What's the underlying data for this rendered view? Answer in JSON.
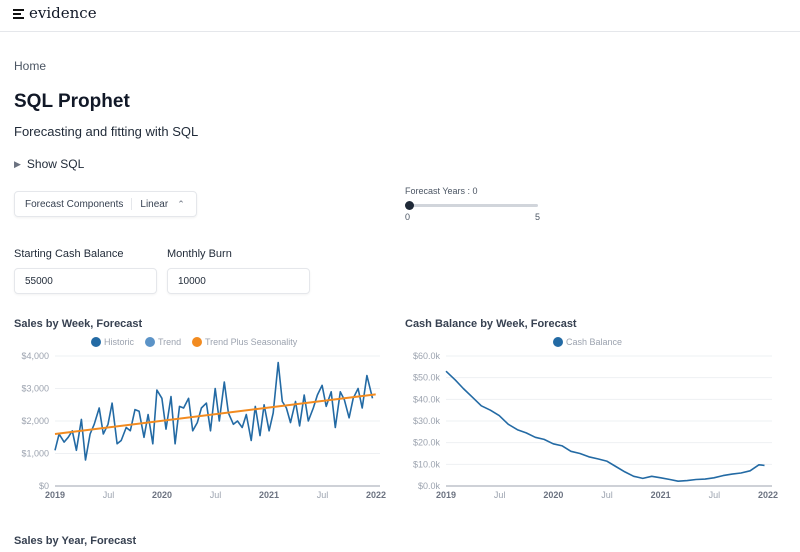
{
  "header": {
    "logo_text": "evidence"
  },
  "breadcrumb": "Home",
  "title": "SQL Prophet",
  "subtitle": "Forecasting and fitting with SQL",
  "show_sql": "Show SQL",
  "dropdown": {
    "label": "Forecast Components",
    "value": "Linear"
  },
  "slider": {
    "label": "Forecast Years : 0",
    "value": 0,
    "min": "0",
    "max": "5"
  },
  "inputs": [
    {
      "label": "Starting Cash Balance",
      "value": "55000"
    },
    {
      "label": "Monthly Burn",
      "value": "10000"
    }
  ],
  "next_section_title": "Sales by Year, Forecast",
  "colors": {
    "historic": "#236aa4",
    "trend": "#5b93c7",
    "seasonality": "#f28b20",
    "cash": "#236aa4"
  },
  "chart_data": [
    {
      "type": "line",
      "title": "Sales by Week, Forecast",
      "ylim": [
        0,
        4000
      ],
      "yticks": [
        "$0",
        "$1,000",
        "$2,000",
        "$3,000",
        "$4,000"
      ],
      "xticks": [
        "2019",
        "Jul",
        "2020",
        "Jul",
        "2021",
        "Jul",
        "2022"
      ],
      "grid": true,
      "legend": "top",
      "series": [
        {
          "name": "Historic",
          "x": [
            "2019-01-01",
            "2019-01-15",
            "2019-02-01",
            "2019-02-15",
            "2019-03-01",
            "2019-03-15",
            "2019-04-01",
            "2019-04-15",
            "2019-05-01",
            "2019-05-15",
            "2019-06-01",
            "2019-06-15",
            "2019-07-01",
            "2019-07-15",
            "2019-08-01",
            "2019-08-15",
            "2019-09-01",
            "2019-09-15",
            "2019-10-01",
            "2019-10-15",
            "2019-11-01",
            "2019-11-15",
            "2019-12-01",
            "2019-12-15",
            "2020-01-01",
            "2020-01-15",
            "2020-02-01",
            "2020-02-15",
            "2020-03-01",
            "2020-03-15",
            "2020-04-01",
            "2020-04-15",
            "2020-05-01",
            "2020-05-15",
            "2020-06-01",
            "2020-06-15",
            "2020-07-01",
            "2020-07-15",
            "2020-08-01",
            "2020-08-15",
            "2020-09-01",
            "2020-09-15",
            "2020-10-01",
            "2020-10-15",
            "2020-11-01",
            "2020-11-15",
            "2020-12-01",
            "2020-12-15",
            "2021-01-01",
            "2021-01-15",
            "2021-02-01",
            "2021-02-15",
            "2021-03-01",
            "2021-03-15",
            "2021-04-01",
            "2021-04-15",
            "2021-05-01",
            "2021-05-15",
            "2021-06-01",
            "2021-06-15",
            "2021-07-01",
            "2021-07-15",
            "2021-08-01",
            "2021-08-15",
            "2021-09-01",
            "2021-09-15",
            "2021-10-01",
            "2021-10-15",
            "2021-11-01",
            "2021-11-15",
            "2021-12-01",
            "2021-12-20"
          ],
          "values": [
            1100,
            1600,
            1350,
            1500,
            1700,
            1100,
            2050,
            800,
            1600,
            1900,
            2400,
            1600,
            1900,
            2550,
            1300,
            1400,
            1800,
            1700,
            2350,
            2300,
            1500,
            2200,
            1300,
            2950,
            2700,
            1750,
            2750,
            1300,
            2450,
            2400,
            2700,
            1700,
            1950,
            2400,
            2550,
            1700,
            3000,
            2000,
            3200,
            2250,
            1900,
            2000,
            1800,
            2200,
            1400,
            2450,
            1550,
            2500,
            1700,
            2250,
            3800,
            2600,
            2400,
            1950,
            2600,
            1850,
            2800,
            2000,
            2400,
            2800,
            3100,
            2450,
            2900,
            1800,
            2900,
            2650,
            2100,
            2700,
            3000,
            2400,
            3400,
            2700
          ]
        },
        {
          "name": "Trend",
          "x": [
            "2019-01-01",
            "2021-12-31"
          ],
          "values": [
            1600,
            2820
          ]
        },
        {
          "name": "Trend Plus Seasonality",
          "x": [
            "2019-01-01",
            "2021-12-31"
          ],
          "values": [
            1600,
            2820
          ]
        }
      ]
    },
    {
      "type": "line",
      "title": "Cash Balance by Week, Forecast",
      "ylim": [
        0,
        60000
      ],
      "yticks": [
        "$0.0k",
        "$10.0k",
        "$20.0k",
        "$30.0k",
        "$40.0k",
        "$50.0k",
        "$60.0k"
      ],
      "xticks": [
        "2019",
        "Jul",
        "2020",
        "Jul",
        "2021",
        "Jul",
        "2022"
      ],
      "grid": true,
      "legend": "top",
      "series": [
        {
          "name": "Cash Balance",
          "x": [
            "2019-01-01",
            "2019-02-01",
            "2019-03-01",
            "2019-04-01",
            "2019-05-01",
            "2019-06-01",
            "2019-07-01",
            "2019-08-01",
            "2019-09-01",
            "2019-10-01",
            "2019-11-01",
            "2019-12-01",
            "2020-01-01",
            "2020-02-01",
            "2020-03-01",
            "2020-04-01",
            "2020-05-01",
            "2020-06-01",
            "2020-07-01",
            "2020-08-01",
            "2020-09-01",
            "2020-10-01",
            "2020-11-01",
            "2020-12-01",
            "2021-01-01",
            "2021-02-01",
            "2021-03-01",
            "2021-04-01",
            "2021-05-01",
            "2021-06-01",
            "2021-07-01",
            "2021-08-01",
            "2021-09-01",
            "2021-10-01",
            "2021-11-01",
            "2021-12-01",
            "2021-12-20"
          ],
          "values": [
            53000,
            49000,
            45000,
            41000,
            37000,
            35000,
            32500,
            28500,
            26000,
            24500,
            22500,
            21500,
            19500,
            18500,
            16000,
            15000,
            13500,
            12500,
            11500,
            9000,
            6500,
            4500,
            3500,
            4500,
            3800,
            3000,
            2200,
            2500,
            3000,
            3200,
            3800,
            4800,
            5500,
            6000,
            7000,
            9800,
            9500
          ]
        }
      ]
    }
  ]
}
